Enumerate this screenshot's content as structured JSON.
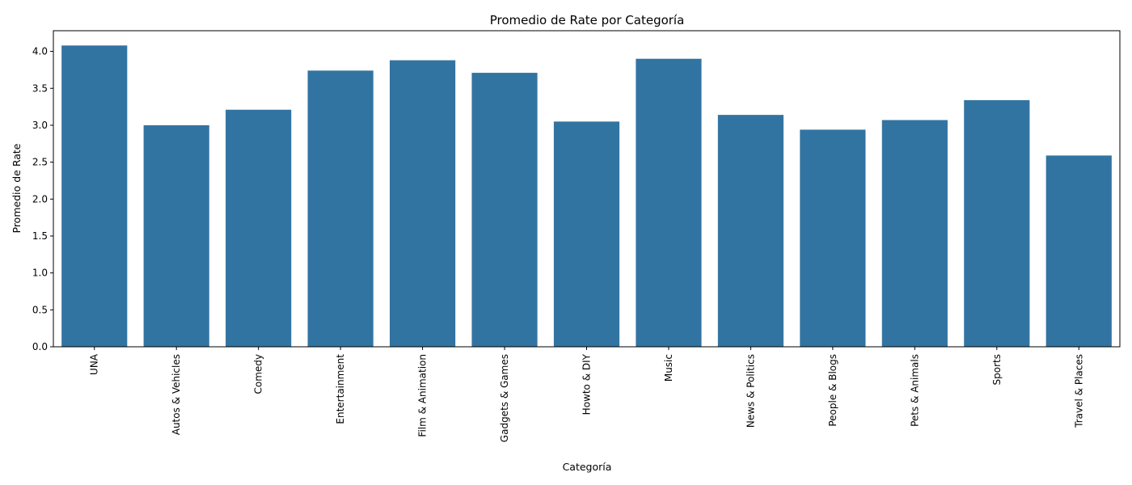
{
  "chart_data": {
    "type": "bar",
    "title": "Promedio de Rate por Categoría",
    "xlabel": "Categoría",
    "ylabel": "Promedio de Rate",
    "categories": [
      "UNA",
      "Autos & Vehicles",
      "Comedy",
      "Entertainment",
      "Film & Animation",
      "Gadgets & Games",
      "Howto & DIY",
      "Music",
      "News & Politics",
      "People & Blogs",
      "Pets & Animals",
      "Sports",
      "Travel & Places"
    ],
    "values": [
      4.08,
      3.0,
      3.21,
      3.74,
      3.88,
      3.71,
      3.05,
      3.9,
      3.14,
      2.94,
      3.07,
      3.34,
      2.59
    ],
    "ylim": [
      0,
      4.28
    ],
    "yticks": [
      "0.0",
      "0.5",
      "1.0",
      "1.5",
      "2.0",
      "2.5",
      "3.0",
      "3.5",
      "4.0"
    ],
    "grid": false,
    "bar_color": "#3274a1",
    "axis_color": "#000000"
  }
}
